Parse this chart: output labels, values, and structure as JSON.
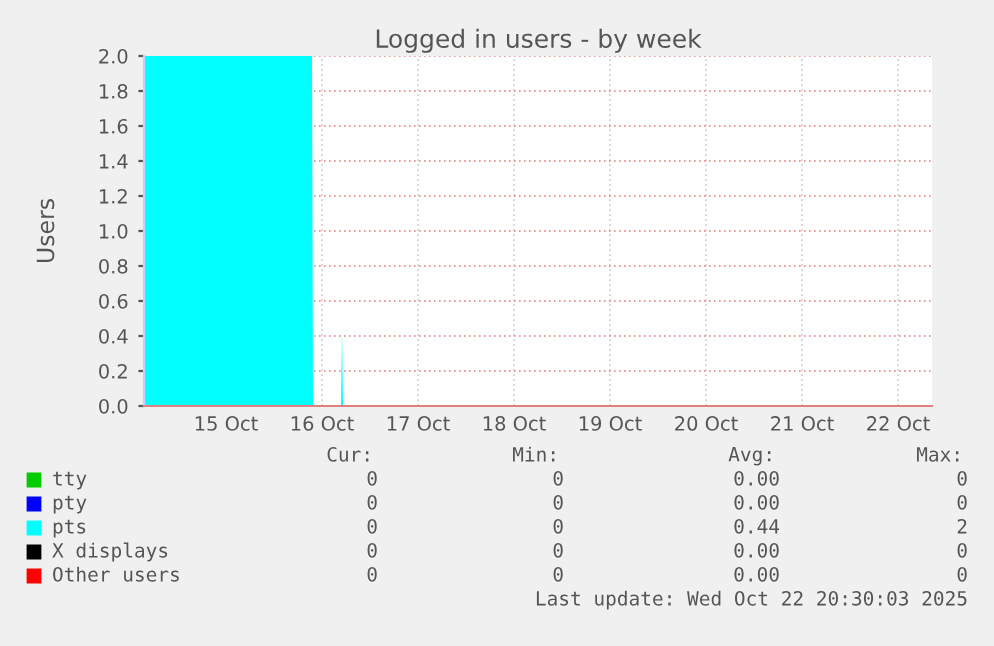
{
  "chart_data": {
    "type": "area",
    "title": "Logged in users - by week",
    "ylabel": "Users",
    "xlim": [
      "2025-10-14T15:30",
      "2025-10-22T20:30"
    ],
    "xticks": [
      {
        "value": "2025-10-15T12:00",
        "label": "15 Oct"
      },
      {
        "value": "2025-10-16T12:00",
        "label": "16 Oct"
      },
      {
        "value": "2025-10-17T12:00",
        "label": "17 Oct"
      },
      {
        "value": "2025-10-18T12:00",
        "label": "18 Oct"
      },
      {
        "value": "2025-10-19T12:00",
        "label": "19 Oct"
      },
      {
        "value": "2025-10-20T12:00",
        "label": "20 Oct"
      },
      {
        "value": "2025-10-21T12:00",
        "label": "21 Oct"
      },
      {
        "value": "2025-10-22T12:00",
        "label": "22 Oct"
      }
    ],
    "ylim": [
      0,
      2
    ],
    "yticks": [
      {
        "value": 0,
        "label": "0.0"
      },
      {
        "value": 0.2,
        "label": "0.2"
      },
      {
        "value": 0.4,
        "label": "0.4"
      },
      {
        "value": 0.6,
        "label": "0.6"
      },
      {
        "value": 0.8,
        "label": "0.8"
      },
      {
        "value": 1,
        "label": "1.0"
      },
      {
        "value": 1.2,
        "label": "1.2"
      },
      {
        "value": 1.4,
        "label": "1.4"
      },
      {
        "value": 1.6,
        "label": "1.6"
      },
      {
        "value": 1.8,
        "label": "1.8"
      },
      {
        "value": 2,
        "label": "2.0"
      }
    ],
    "grid": true,
    "legend": "bottom",
    "series": [
      {
        "name": "tty",
        "color": "#00cc00"
      },
      {
        "name": "pty",
        "color": "#0000ff"
      },
      {
        "name": "pts",
        "color": "#00ffff",
        "x": [
          "2025-10-14T15:30",
          "2025-10-16T09:30",
          "2025-10-16T09:45",
          "2025-10-16T16:45",
          "2025-10-16T17:00",
          "2025-10-16T17:15",
          "2025-10-22T20:30"
        ],
        "values": [
          2,
          2,
          0,
          0,
          0.44,
          0,
          0
        ]
      },
      {
        "name": "X displays",
        "color": "#000000"
      },
      {
        "name": "Other users",
        "color": "#ff0000"
      }
    ],
    "annotations": [
      "Cur:",
      "Min:",
      "Avg:",
      "Max:",
      "0",
      "0",
      "0.00",
      "0",
      "0",
      "0",
      "0.00",
      "0",
      "0",
      "0",
      "0.44",
      "2",
      "0",
      "0",
      "0.00",
      "0",
      "0",
      "0",
      "0.00",
      "0",
      "Last update: Wed Oct 22 20:30:03 2025"
    ]
  }
}
